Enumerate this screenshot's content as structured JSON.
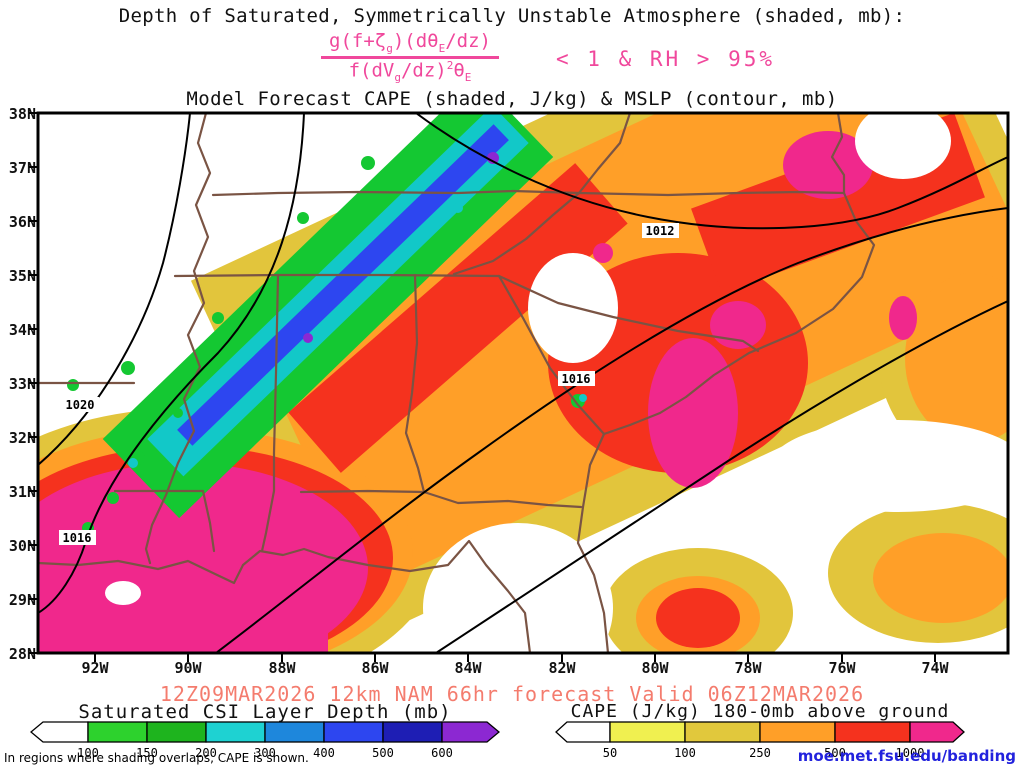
{
  "title": "Depth of Saturated, Symmetrically Unstable Atmosphere (shaded, mb):",
  "subtitle": "Model Forecast CAPE (shaded, J/kg) & MSLP (contour, mb)",
  "equation": {
    "color": "#f0489c",
    "numerator_parts": [
      {
        "text": "g(f+ζ"
      },
      {
        "text": "g",
        "sub": true
      },
      {
        "text": ")(dθ"
      },
      {
        "text": "E",
        "sub": true
      },
      {
        "text": "/dz)"
      }
    ],
    "denominator_parts": [
      {
        "text": "f(dV"
      },
      {
        "text": "g",
        "sub": true
      },
      {
        "text": "/dz)"
      },
      {
        "text": "2",
        "sup": true
      },
      {
        "text": "θ"
      },
      {
        "text": "E",
        "sub": true
      }
    ],
    "condition": "< 1 & RH > 95%"
  },
  "map": {
    "y_tick_labels": [
      "38N",
      "37N",
      "36N",
      "35N",
      "34N",
      "33N",
      "32N",
      "31N",
      "30N",
      "29N",
      "28N"
    ],
    "x_tick_labels": [
      "92W",
      "90W",
      "88W",
      "86W",
      "84W",
      "82W",
      "80W",
      "78W",
      "76W",
      "74W"
    ],
    "contour_labels": [
      {
        "text": "1020"
      },
      {
        "text": "1016"
      },
      {
        "text": "1012"
      },
      {
        "text": "1016"
      }
    ]
  },
  "footer": {
    "forecast_line": "12Z09MAR2026 12km NAM 66hr forecast Valid 06Z12MAR2026",
    "forecast_color": "#f47c6e",
    "csi_legend": {
      "title": "Saturated CSI Layer Depth (mb)",
      "ticks": [
        "100",
        "150",
        "200",
        "300",
        "400",
        "500",
        "600"
      ],
      "colors": [
        "#ffffff",
        "#2dd22d",
        "#1eb41e",
        "#1ed2d2",
        "#1e87dc",
        "#2d46f0",
        "#1e1eb4",
        "#8c28d2"
      ]
    },
    "cape_legend": {
      "title": "CAPE (J/kg) 180-0mb above ground",
      "ticks": [
        "50",
        "100",
        "250",
        "500",
        "1000"
      ],
      "colors": [
        "#ffffff",
        "#f0f050",
        "#e1c83c",
        "#ff9f28",
        "#f5321e",
        "#f0288c"
      ]
    },
    "note": "In regions where shading overlaps, CAPE is shown.",
    "link": "moe.met.fsu.edu/banding",
    "link_color": "#2222dd"
  },
  "chart_data": {
    "type": "heatmap",
    "title": "Depth of Saturated, Symmetrically Unstable Atmosphere (shaded, mb)",
    "overlay_title": "Model Forecast CAPE (shaded, J/kg) & MSLP (contour, mb)",
    "x_axis": {
      "orientation": "longitude",
      "tick_labels": [
        "92W",
        "90W",
        "88W",
        "86W",
        "84W",
        "82W",
        "80W",
        "78W",
        "76W",
        "74W"
      ]
    },
    "y_axis": {
      "orientation": "latitude",
      "tick_labels": [
        "38N",
        "37N",
        "36N",
        "35N",
        "34N",
        "33N",
        "32N",
        "31N",
        "30N",
        "29N",
        "28N"
      ]
    },
    "fields": [
      {
        "name": "Saturated CSI Layer Depth",
        "units": "mb",
        "style": "filled_contour",
        "levels": [
          100,
          150,
          200,
          300,
          400,
          500,
          600
        ],
        "colors": [
          "#ffffff",
          "#2dd22d",
          "#1eb41e",
          "#1ed2d2",
          "#1e87dc",
          "#2d46f0",
          "#1e1eb4",
          "#8c28d2"
        ],
        "pattern": "narrow NW-SE banded swath from ~85W at 38N southwest to ~91W at 32N; green outer edges with teal/blue core and small purple maxima"
      },
      {
        "name": "CAPE 180-0mb above ground",
        "units": "J/kg",
        "style": "filled_contour",
        "levels": [
          50,
          100,
          250,
          500,
          1000
        ],
        "colors": [
          "#ffffff",
          "#f0f050",
          "#e1c83c",
          "#ff9f28",
          "#f5321e",
          "#f0288c"
        ],
        "pattern": "broad SW-NE swath from Gulf coast (>1000 J/kg magenta maximum near 90W/30N) across Alabama, Georgia and the Carolinas to the Mid-Atlantic coast, with secondary magenta maxima near the Carolina coast and northeast corner"
      },
      {
        "name": "MSLP",
        "units": "mb",
        "style": "contour",
        "labeled_contours": [
          1020,
          1016,
          1012,
          1016
        ],
        "orientation": "isobars run SW-NE, pressure increasing toward the west"
      }
    ],
    "model_run": "12Z09MAR2026",
    "model": "12km NAM",
    "forecast_hour": "66hr",
    "valid": "06Z12MAR2026"
  }
}
